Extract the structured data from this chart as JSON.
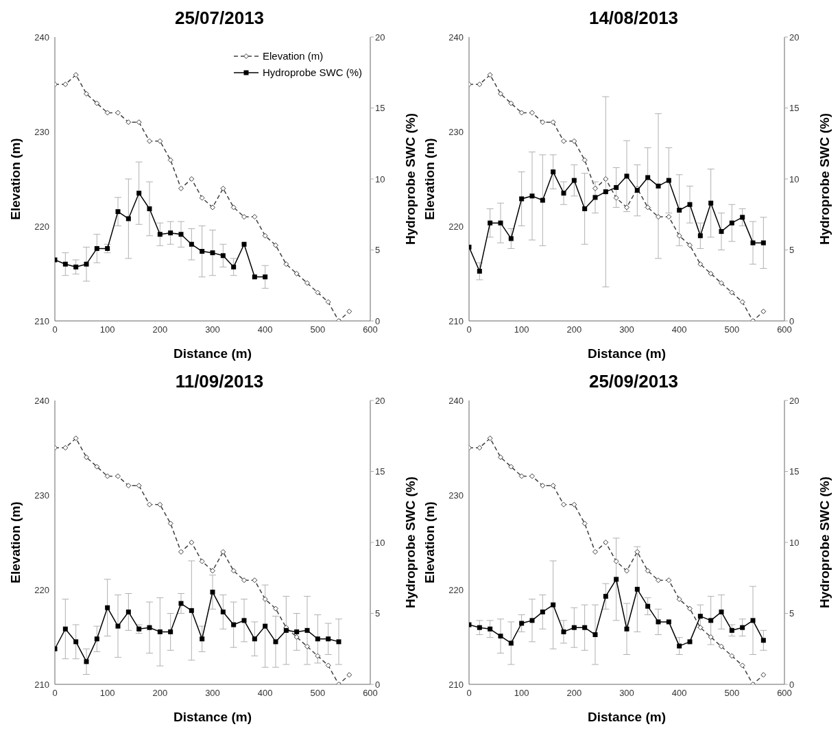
{
  "chart_data": [
    {
      "type": "line",
      "title": "25/07/2013",
      "xlabel": "Distance (m)",
      "ylabel": "Elevation (m)",
      "y2label": "Hydroprobe SWC (%)",
      "xlim": [
        0,
        600
      ],
      "xticks": [
        0,
        100,
        200,
        300,
        400,
        500,
        600
      ],
      "ylim": [
        210,
        240
      ],
      "yticks": [
        210,
        220,
        230,
        240
      ],
      "y2lim": [
        0,
        20
      ],
      "y2ticks": [
        0,
        5,
        10,
        15,
        20
      ],
      "grid": false,
      "legend": "top right",
      "series": [
        {
          "name": "Elevation (m)",
          "color": "#404040",
          "marker": "diamond",
          "line_style": "dashed",
          "x": [
            0,
            20,
            40,
            60,
            80,
            100,
            120,
            140,
            160,
            180,
            200,
            220,
            240,
            260,
            280,
            300,
            320,
            340,
            360,
            380,
            400,
            420,
            440,
            460,
            480,
            500,
            520,
            540,
            560
          ],
          "values": [
            235,
            235,
            236,
            234,
            233,
            232,
            232,
            231,
            231,
            229,
            229,
            227,
            224,
            225,
            223,
            222,
            224,
            222,
            221,
            221,
            219,
            218,
            216,
            215,
            214,
            213,
            212,
            210,
            211
          ]
        },
        {
          "name": "Hydroprobe SWC (%)",
          "color": "#000000",
          "marker": "square",
          "line_style": "solid",
          "axis": "y2",
          "x": [
            0,
            20,
            40,
            60,
            80,
            100,
            120,
            140,
            160,
            180,
            200,
            220,
            240,
            260,
            280,
            300,
            320,
            340,
            360,
            380,
            400
          ],
          "values": [
            4.3,
            4.0,
            3.8,
            4.0,
            5.1,
            5.1,
            7.7,
            7.2,
            9.0,
            7.9,
            6.1,
            6.2,
            6.1,
            5.4,
            4.9,
            4.8,
            4.6,
            3.8,
            5.4,
            3.1,
            3.1
          ],
          "errors": [
            null,
            0.8,
            0.5,
            1.2,
            1.0,
            0.3,
            1.0,
            2.8,
            2.2,
            1.9,
            0.8,
            0.8,
            0.9,
            1.1,
            1.8,
            1.6,
            0.8,
            0.6,
            null,
            null,
            0.8
          ]
        }
      ]
    },
    {
      "type": "line",
      "title": "14/08/2013",
      "xlabel": "Distance (m)",
      "ylabel": "Elevation (m)",
      "y2label": "Hydroprobe SWC (%)",
      "xlim": [
        0,
        600
      ],
      "xticks": [
        0,
        100,
        200,
        300,
        400,
        500,
        600
      ],
      "ylim": [
        210,
        240
      ],
      "yticks": [
        210,
        220,
        230,
        240
      ],
      "y2lim": [
        0,
        20
      ],
      "y2ticks": [
        0,
        5,
        10,
        15,
        20
      ],
      "grid": false,
      "series": [
        {
          "color": "#404040",
          "marker": "diamond",
          "line_style": "dashed",
          "x": [
            0,
            20,
            40,
            60,
            80,
            100,
            120,
            140,
            160,
            180,
            200,
            220,
            240,
            260,
            280,
            300,
            320,
            340,
            360,
            380,
            400,
            420,
            440,
            460,
            480,
            500,
            520,
            540,
            560
          ],
          "values": [
            235,
            235,
            236,
            234,
            233,
            232,
            232,
            231,
            231,
            229,
            229,
            227,
            224,
            225,
            223,
            222,
            224,
            222,
            221,
            221,
            219,
            218,
            216,
            215,
            214,
            213,
            212,
            210,
            211
          ]
        },
        {
          "color": "#000000",
          "marker": "square",
          "line_style": "solid",
          "axis": "y2",
          "x": [
            0,
            20,
            40,
            60,
            80,
            100,
            120,
            140,
            160,
            180,
            200,
            220,
            240,
            260,
            280,
            300,
            320,
            340,
            360,
            380,
            400,
            420,
            440,
            460,
            480,
            500,
            520,
            540,
            560
          ],
          "values": [
            5.2,
            3.5,
            6.9,
            6.9,
            5.8,
            8.6,
            8.8,
            8.5,
            10.5,
            9.0,
            9.9,
            7.9,
            8.7,
            9.1,
            9.4,
            10.2,
            9.2,
            10.1,
            9.5,
            9.9,
            7.8,
            8.2,
            6.0,
            8.3,
            6.3,
            6.9,
            7.3,
            5.5,
            5.5
          ],
          "errors": [
            null,
            0.6,
            1.0,
            1.4,
            0.7,
            1.9,
            3.1,
            3.2,
            1.2,
            0.8,
            1.1,
            2.5,
            1.1,
            6.7,
            1.4,
            2.5,
            1.8,
            2.1,
            5.1,
            2.3,
            2.5,
            1.3,
            0.9,
            2.4,
            1.3,
            1.3,
            0.6,
            1.5,
            1.8
          ]
        }
      ]
    },
    {
      "type": "line",
      "title": "11/09/2013",
      "xlabel": "Distance (m)",
      "ylabel": "Elevation (m)",
      "y2label": "Hydroprobe SWC (%)",
      "xlim": [
        0,
        600
      ],
      "xticks": [
        0,
        100,
        200,
        300,
        400,
        500,
        600
      ],
      "ylim": [
        210,
        240
      ],
      "yticks": [
        210,
        220,
        230,
        240
      ],
      "y2lim": [
        0,
        20
      ],
      "y2ticks": [
        0,
        5,
        10,
        15,
        20
      ],
      "grid": false,
      "series": [
        {
          "color": "#404040",
          "marker": "diamond",
          "line_style": "dashed",
          "x": [
            0,
            20,
            40,
            60,
            80,
            100,
            120,
            140,
            160,
            180,
            200,
            220,
            240,
            260,
            280,
            300,
            320,
            340,
            360,
            380,
            400,
            420,
            440,
            460,
            480,
            500,
            520,
            540,
            560
          ],
          "values": [
            235,
            235,
            236,
            234,
            233,
            232,
            232,
            231,
            231,
            229,
            229,
            227,
            224,
            225,
            223,
            222,
            224,
            222,
            221,
            221,
            219,
            218,
            216,
            215,
            214,
            213,
            212,
            210,
            211
          ]
        },
        {
          "color": "#000000",
          "marker": "square",
          "line_style": "solid",
          "axis": "y2",
          "x": [
            0,
            20,
            40,
            60,
            80,
            100,
            120,
            140,
            160,
            180,
            200,
            220,
            240,
            260,
            280,
            300,
            320,
            340,
            360,
            380,
            400,
            420,
            440,
            460,
            480,
            500,
            520,
            540
          ],
          "values": [
            2.5,
            3.9,
            3.0,
            1.6,
            3.2,
            5.4,
            4.1,
            5.1,
            3.9,
            4.0,
            3.7,
            3.7,
            5.7,
            5.2,
            3.2,
            6.5,
            5.1,
            4.2,
            4.5,
            3.2,
            4.1,
            3.0,
            3.8,
            3.7,
            3.8,
            3.2,
            3.2,
            3.0
          ],
          "errors": [
            null,
            2.1,
            1.2,
            0.9,
            0.9,
            2.0,
            2.2,
            1.3,
            0.3,
            1.8,
            2.4,
            1.3,
            0.7,
            3.5,
            0.9,
            1.2,
            1.2,
            1.6,
            1.5,
            1.2,
            2.9,
            1.8,
            2.4,
            1.3,
            2.4,
            1.7,
            1.1,
            1.6
          ]
        }
      ]
    },
    {
      "type": "line",
      "title": "25/09/2013",
      "xlabel": "Distance (m)",
      "ylabel": "Elevation (m)",
      "y2label": "Hydroprobe SWC (%)",
      "xlim": [
        0,
        600
      ],
      "xticks": [
        0,
        100,
        200,
        300,
        400,
        500,
        600
      ],
      "ylim": [
        210,
        240
      ],
      "yticks": [
        210,
        220,
        230,
        240
      ],
      "y2lim": [
        0,
        20
      ],
      "y2ticks": [
        0,
        5,
        10,
        15,
        20
      ],
      "grid": false,
      "series": [
        {
          "color": "#404040",
          "marker": "diamond",
          "line_style": "dashed",
          "x": [
            0,
            20,
            40,
            60,
            80,
            100,
            120,
            140,
            160,
            180,
            200,
            220,
            240,
            260,
            280,
            300,
            320,
            340,
            360,
            380,
            400,
            420,
            440,
            460,
            480,
            500,
            520,
            540,
            560
          ],
          "values": [
            235,
            235,
            236,
            234,
            233,
            232,
            232,
            231,
            231,
            229,
            229,
            227,
            224,
            225,
            223,
            222,
            224,
            222,
            221,
            221,
            219,
            218,
            216,
            215,
            214,
            213,
            212,
            210,
            211
          ]
        },
        {
          "color": "#000000",
          "marker": "square",
          "line_style": "solid",
          "axis": "y2",
          "x": [
            0,
            20,
            40,
            60,
            80,
            100,
            120,
            140,
            160,
            180,
            200,
            220,
            240,
            260,
            280,
            300,
            320,
            340,
            360,
            380,
            400,
            420,
            440,
            460,
            480,
            500,
            520,
            540,
            560
          ],
          "values": [
            4.2,
            4.0,
            3.9,
            3.4,
            2.9,
            4.3,
            4.5,
            5.1,
            5.6,
            3.7,
            4.0,
            4.0,
            3.5,
            6.2,
            7.4,
            3.9,
            6.7,
            5.5,
            4.4,
            4.4,
            2.7,
            3.0,
            4.8,
            4.5,
            5.1,
            3.8,
            4.0,
            4.5,
            3.1
          ],
          "errors": [
            null,
            0.5,
            0.6,
            1.2,
            1.5,
            0.6,
            1.5,
            1.2,
            3.1,
            0.8,
            1.4,
            1.6,
            2.1,
            0.9,
            2.9,
            1.8,
            3.0,
            0.6,
            0.9,
            null,
            0.6,
            null,
            0.8,
            1.7,
            1.2,
            0.4,
            0.6,
            2.4,
            0.7
          ]
        }
      ]
    }
  ]
}
